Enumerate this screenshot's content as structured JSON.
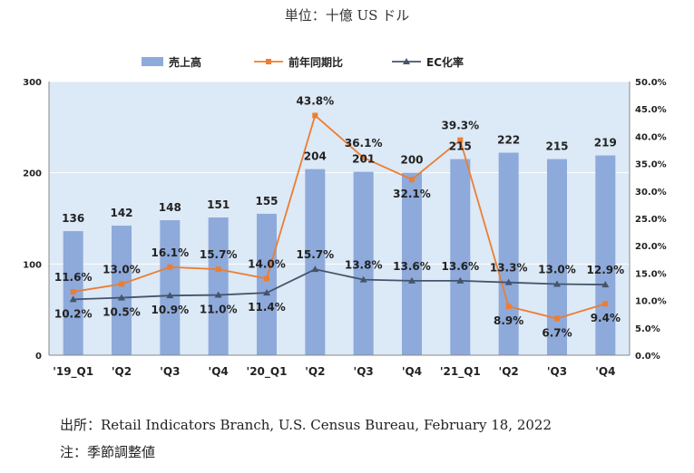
{
  "unit_note": "単位：十億 US ドル",
  "source_note": "出所：Retail Indicators Branch, U.S. Census Bureau, February 18, 2022",
  "footnote": "注：季節調整値",
  "colors": {
    "bar": "#8eaadb",
    "growth": "#ed7d31",
    "ec": "#44546a",
    "plot_bg": "#dce9f6"
  },
  "chart_data": {
    "type": "bar",
    "categories": [
      "'19_Q1",
      "'Q2",
      "'Q3",
      "'Q4",
      "'20_Q1",
      "'Q2",
      "'Q3",
      "'Q4",
      "'21_Q1",
      "'Q2",
      "'Q3",
      "'Q4"
    ],
    "y_left": {
      "min": 0,
      "max": 300,
      "ticks": [
        0,
        100,
        200,
        300
      ]
    },
    "y_right": {
      "min": 0,
      "max": 50,
      "ticks": [
        "0.0%",
        "5.0%",
        "10.0%",
        "15.0%",
        "20.0%",
        "25.0%",
        "30.0%",
        "35.0%",
        "40.0%",
        "45.0%",
        "50.0%"
      ]
    },
    "legend_position": "top",
    "series": [
      {
        "name": "売上高",
        "type": "bar",
        "axis": "left",
        "values": [
          136,
          142,
          148,
          151,
          155,
          204,
          201,
          200,
          215,
          222,
          215,
          219
        ],
        "labels": [
          "136",
          "142",
          "148",
          "151",
          "155",
          "204",
          "201",
          "200",
          "215",
          "222",
          "215",
          "219"
        ]
      },
      {
        "name": "前年同期比",
        "type": "line",
        "axis": "right",
        "marker": "square",
        "values": [
          11.6,
          13.0,
          16.1,
          15.7,
          14.0,
          43.8,
          36.1,
          32.1,
          39.3,
          8.9,
          6.7,
          9.4
        ],
        "labels": [
          "11.6%",
          "13.0%",
          "16.1%",
          "15.7%",
          "14.0%",
          "43.8%",
          "36.1%",
          "32.1%",
          "39.3%",
          "8.9%",
          "6.7%",
          "9.4%"
        ]
      },
      {
        "name": "EC化率",
        "type": "line",
        "axis": "right",
        "marker": "triangle",
        "values": [
          10.2,
          10.5,
          10.9,
          11.0,
          11.4,
          15.7,
          13.8,
          13.6,
          13.6,
          13.3,
          13.0,
          12.9
        ],
        "labels": [
          "10.2%",
          "10.5%",
          "10.9%",
          "11.0%",
          "11.4%",
          "15.7%",
          "13.8%",
          "13.6%",
          "13.6%",
          "13.3%",
          "13.0%",
          "12.9%"
        ]
      }
    ]
  }
}
